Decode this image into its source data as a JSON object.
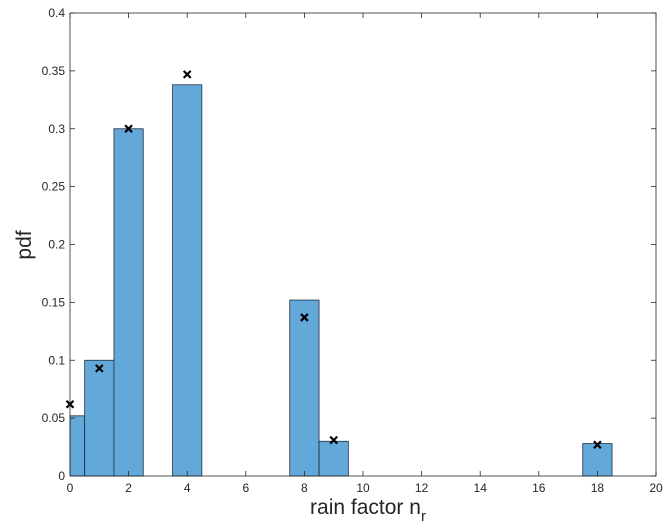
{
  "chart_data": {
    "type": "bar",
    "xlabel": "rain factor n",
    "xlabel_subscript": "r",
    "ylabel": "pdf",
    "xlim": [
      0,
      20
    ],
    "ylim": [
      0,
      0.4
    ],
    "xticks": [
      "0",
      "2",
      "4",
      "6",
      "8",
      "10",
      "12",
      "14",
      "16",
      "18",
      "20"
    ],
    "yticks": [
      "0",
      "0.05",
      "0.1",
      "0.15",
      "0.2",
      "0.25",
      "0.3",
      "0.35",
      "0.4"
    ],
    "grid": false,
    "bar_color": "#62a8d9",
    "bar_edge_color": "#1f2f3f",
    "bars": [
      {
        "x": 0,
        "value": 0.052
      },
      {
        "x": 1,
        "value": 0.1
      },
      {
        "x": 2,
        "value": 0.3
      },
      {
        "x": 4,
        "value": 0.338
      },
      {
        "x": 8,
        "value": 0.152
      },
      {
        "x": 9,
        "value": 0.03
      },
      {
        "x": 18,
        "value": 0.028
      }
    ],
    "markers": [
      {
        "x": 0,
        "value": 0.062
      },
      {
        "x": 1,
        "value": 0.093
      },
      {
        "x": 2,
        "value": 0.3
      },
      {
        "x": 4,
        "value": 0.347
      },
      {
        "x": 8,
        "value": 0.137
      },
      {
        "x": 9,
        "value": 0.031
      },
      {
        "x": 18,
        "value": 0.027
      }
    ],
    "marker_symbol": "x"
  }
}
